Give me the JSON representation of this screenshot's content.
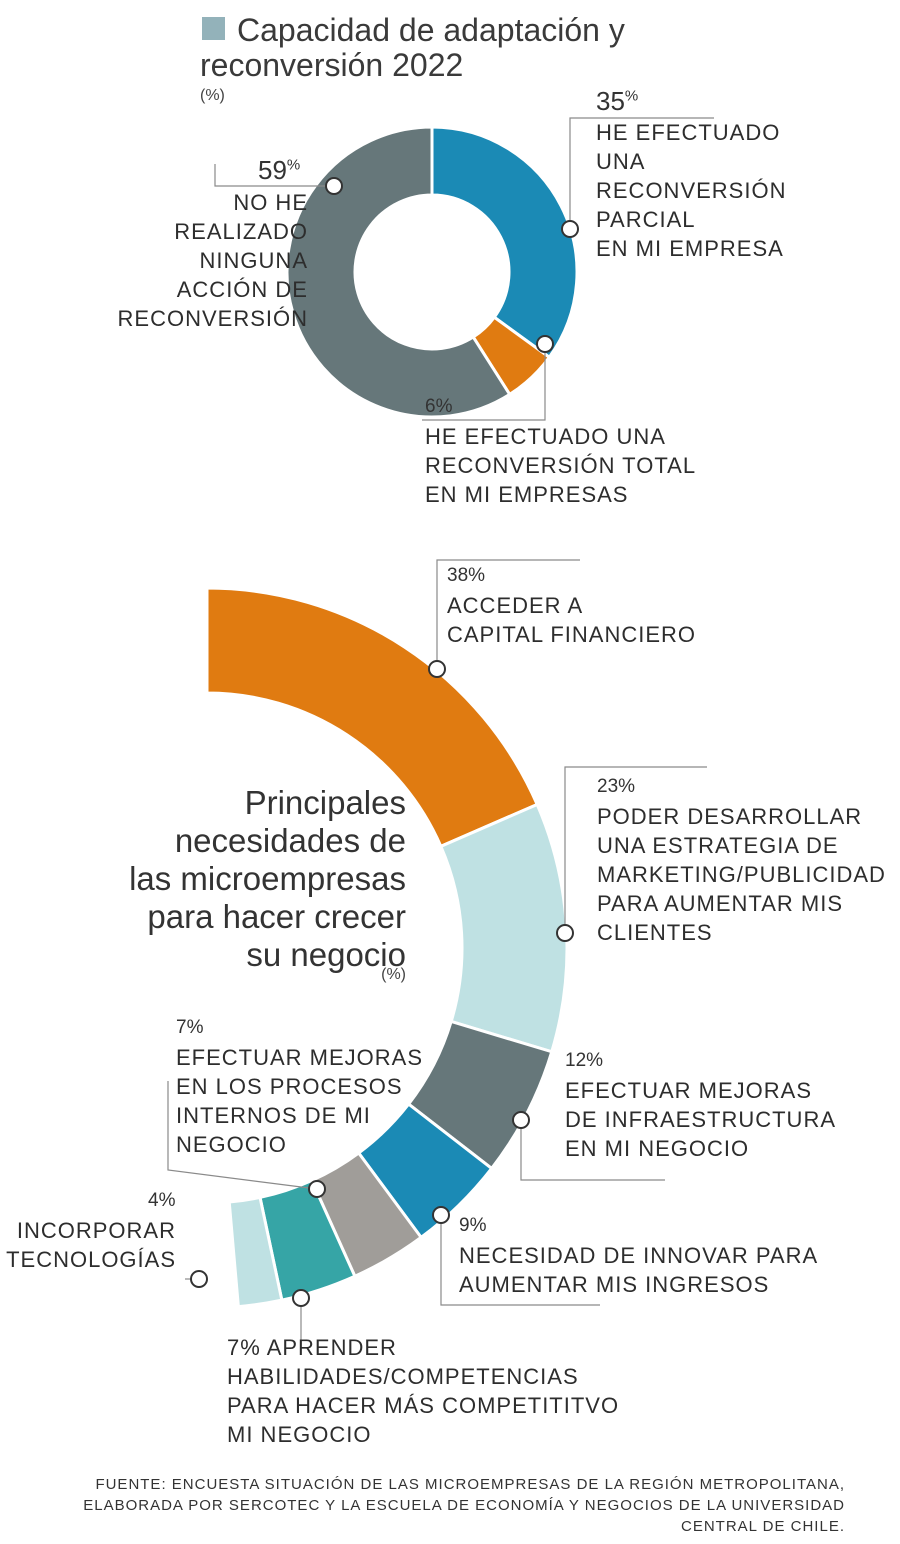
{
  "colors": {
    "gray": "#66777a",
    "blue": "#1b8ab5",
    "orange": "#e07b11",
    "lightblue": "#bfe1e3",
    "teal": "#36a5a6",
    "warmgray": "#a09d99",
    "legend_swatch": "#93b2ba"
  },
  "top": {
    "title_line1": "Capacidad de adaptación y",
    "title_line2": "reconversión 2022",
    "unit": "(%)"
  },
  "bottom": {
    "title": "Principales\nnecesidades de\nlas microempresas\npara hacer crecer\nsu negocio",
    "unit": "(%)"
  },
  "source": "FUENTE: ENCUESTA SITUACIÓN DE LAS MICROEMPRESAS DE LA REGIÓN METROPOLITANA,\nELABORADA POR SERCOTEC Y LA ESCUELA DE ECONOMÍA Y NEGOCIOS DE LA UNIVERSIDAD\nCENTRAL DE CHILE.",
  "chart_data": [
    {
      "type": "pie",
      "title": "Capacidad de adaptación y reconversión 2022 (%)",
      "slices": [
        {
          "label": "HE EFECTUADO UNA RECONVERSIÓN PARCIAL EN MI EMPRESA",
          "value": 35,
          "pct_text": "35",
          "label_text": "HE EFECTUADO\nUNA\nRECONVERSIÓN\nPARCIAL\nEN MI EMPRESA",
          "color": "#1b8ab5"
        },
        {
          "label": "HE EFECTUADO UNA RECONVERSIÓN TOTAL EN MI EMPRESAS",
          "value": 6,
          "pct_text": "6%",
          "label_text": "HE EFECTUADO UNA\nRECONVERSIÓN TOTAL\nEN MI EMPRESAS",
          "color": "#e07b11"
        },
        {
          "label": "NO HE REALIZADO NINGUNA ACCIÓN DE RECONVERSIÓN",
          "value": 59,
          "pct_text": "59",
          "label_text": "NO HE\nREALIZADO\nNINGUNA\nACCIÓN DE\nRECONVERSIÓN",
          "color": "#66777a"
        }
      ]
    },
    {
      "type": "pie",
      "title": "Principales necesidades de las microempresas para hacer crecer su negocio (%)",
      "slices": [
        {
          "label": "ACCEDER A CAPITAL FINANCIERO",
          "value": 38,
          "pct_text": "38%",
          "label_text": "ACCEDER A\n CAPITAL FINANCIERO",
          "color": "#e07b11"
        },
        {
          "label": "PODER DESARROLLAR UNA ESTRATEGIA DE MARKETING/PUBLICIDAD PARA AUMENTAR MIS CLIENTES",
          "value": 23,
          "pct_text": "23%",
          "label_text": "PODER DESARROLLAR\nUNA ESTRATEGIA DE\nMARKETING/PUBLICIDAD\nPARA AUMENTAR MIS\nCLIENTES",
          "color": "#bfe1e3"
        },
        {
          "label": "EFECTUAR MEJORAS DE INFRAESTRUCTURA EN MI NEGOCIO",
          "value": 12,
          "pct_text": "12%",
          "label_text": "EFECTUAR MEJORAS\nDE INFRAESTRUCTURA\nEN MI NEGOCIO",
          "color": "#66777a"
        },
        {
          "label": "NECESIDAD DE INNOVAR PARA AUMENTAR MIS INGRESOS",
          "value": 9,
          "pct_text": "9%",
          "label_text": "NECESIDAD DE INNOVAR PARA\nAUMENTAR MIS INGRESOS",
          "color": "#1b8ab5"
        },
        {
          "label": "EFECTUAR MEJORAS EN LOS PROCESOS INTERNOS DE MI NEGOCIO",
          "value": 7,
          "pct_text": "7%",
          "label_text": "EFECTUAR MEJORAS\nEN LOS PROCESOS\nINTERNOS DE MI\nNEGOCIO",
          "color": "#a09d99"
        },
        {
          "label": "APRENDER HABILIDADES/COMPETENCIAS PARA HACER MÁS COMPETITITVO MI NEGOCIO",
          "value": 7,
          "pct_text": "7% APRENDER",
          "label_text": "HABILIDADES/COMPETENCIAS\nPARA HACER MÁS COMPETITITVO\nMI NEGOCIO",
          "color": "#36a5a6"
        },
        {
          "label": "INCORPORAR TECNOLOGÍAS",
          "value": 4,
          "pct_text": "4%",
          "label_text": "INCORPORAR\nTECNOLOGÍAS",
          "color": "#bfe1e3"
        }
      ]
    }
  ]
}
